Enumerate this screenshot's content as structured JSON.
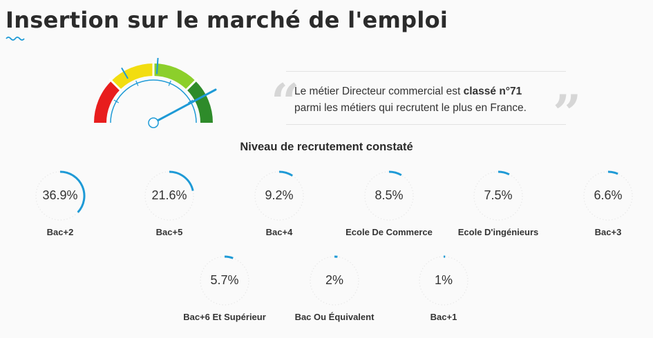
{
  "header": {
    "title": "Insertion sur le marché de l'emploi"
  },
  "gauge": {
    "colors": [
      "#e81d1d",
      "#f2dd10",
      "#8ccf2b",
      "#2e8b2a"
    ],
    "needle_color": "#1e9ad6"
  },
  "quote": {
    "text_before": "Le métier Directeur commercial est ",
    "rank": "classé n°71",
    "text_after": " parmi les métiers qui recrutent le plus en France."
  },
  "chart_data": {
    "type": "donut",
    "title": "Niveau de recrutement constaté",
    "accent_color": "#1e9ad6",
    "items": [
      {
        "label": "Bac+2",
        "value": 36.9,
        "display": "36.9%"
      },
      {
        "label": "Bac+5",
        "value": 21.6,
        "display": "21.6%"
      },
      {
        "label": "Bac+4",
        "value": 9.2,
        "display": "9.2%"
      },
      {
        "label": "Ecole De Commerce",
        "value": 8.5,
        "display": "8.5%"
      },
      {
        "label": "Ecole D'ingénieurs",
        "value": 7.5,
        "display": "7.5%"
      },
      {
        "label": "Bac+3",
        "value": 6.6,
        "display": "6.6%"
      },
      {
        "label": "Bac+6 Et Supérieur",
        "value": 5.7,
        "display": "5.7%"
      },
      {
        "label": "Bac Ou Équivalent",
        "value": 2,
        "display": "2%"
      },
      {
        "label": "Bac+1",
        "value": 1,
        "display": "1%"
      }
    ]
  }
}
